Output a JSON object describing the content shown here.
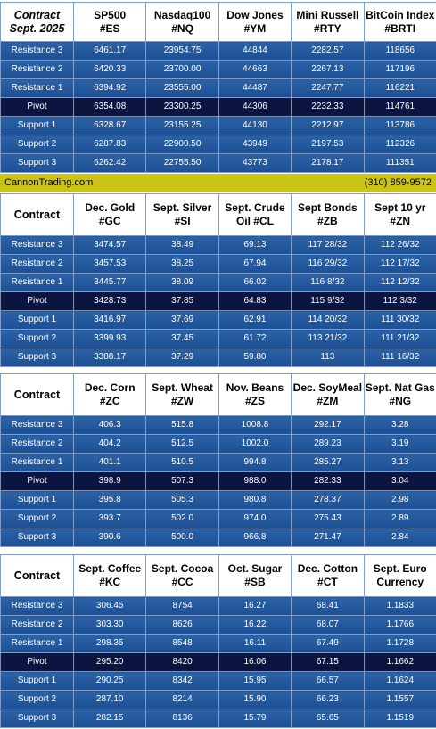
{
  "colors": {
    "row_bg": "#2563a8",
    "pivot_bg": "#0c1440",
    "banner_bg": "#ccc414"
  },
  "banner": {
    "site": "CannonTrading.com",
    "phone": "(310) 859-9572"
  },
  "row_labels": [
    "Resistance 3",
    "Resistance 2",
    "Resistance 1",
    "Pivot",
    "Support 1",
    "Support 2",
    "Support 3"
  ],
  "tables": [
    {
      "corner": [
        "Contract",
        "Sept. 2025"
      ],
      "headers": [
        [
          "SP500",
          "#ES"
        ],
        [
          "Nasdaq100",
          "#NQ"
        ],
        [
          "Dow Jones",
          "#YM"
        ],
        [
          "Mini Russell",
          "#RTY"
        ],
        [
          "BitCoin Index",
          "#BRTI"
        ]
      ],
      "rows": [
        [
          "6461.17",
          "23954.75",
          "44844",
          "2282.57",
          "118656"
        ],
        [
          "6420.33",
          "23700.00",
          "44663",
          "2267.13",
          "117196"
        ],
        [
          "6394.92",
          "23555.00",
          "44487",
          "2247.77",
          "116221"
        ],
        [
          "6354.08",
          "23300.25",
          "44306",
          "2232.33",
          "114761"
        ],
        [
          "6328.67",
          "23155.25",
          "44130",
          "2212.97",
          "113786"
        ],
        [
          "6287.83",
          "22900.50",
          "43949",
          "2197.53",
          "112326"
        ],
        [
          "6262.42",
          "22755.50",
          "43773",
          "2178.17",
          "111351"
        ]
      ]
    },
    {
      "corner": [
        "Contract"
      ],
      "headers": [
        [
          "Dec. Gold",
          "#GC"
        ],
        [
          "Sept. Silver",
          "#SI"
        ],
        [
          "Sept. Crude",
          "Oil #CL"
        ],
        [
          "Sept Bonds",
          "#ZB"
        ],
        [
          "Sept 10 yr",
          "#ZN"
        ]
      ],
      "rows": [
        [
          "3474.57",
          "38.49",
          "69.13",
          "117 28/32",
          "112 26/32"
        ],
        [
          "3457.53",
          "38.25",
          "67.94",
          "116 29/32",
          "112 17/32"
        ],
        [
          "3445.77",
          "38.09",
          "66.02",
          "116  8/32",
          "112 12/32"
        ],
        [
          "3428.73",
          "37.85",
          "64.83",
          "115  9/32",
          "112  3/32"
        ],
        [
          "3416.97",
          "37.69",
          "62.91",
          "114 20/32",
          "111 30/32"
        ],
        [
          "3399.93",
          "37.45",
          "61.72",
          "113 21/32",
          "111 21/32"
        ],
        [
          "3388.17",
          "37.29",
          "59.80",
          "113",
          "111 16/32"
        ]
      ]
    },
    {
      "corner": [
        "Contract"
      ],
      "headers": [
        [
          "Dec. Corn",
          "#ZC"
        ],
        [
          "Sept.  Wheat",
          "#ZW"
        ],
        [
          "Nov. Beans",
          "#ZS"
        ],
        [
          "Dec. SoyMeal",
          "#ZM"
        ],
        [
          "Sept. Nat Gas",
          "#NG"
        ]
      ],
      "rows": [
        [
          "406.3",
          "515.8",
          "1008.8",
          "292.17",
          "3.28"
        ],
        [
          "404.2",
          "512.5",
          "1002.0",
          "289.23",
          "3.19"
        ],
        [
          "401.1",
          "510.5",
          "994.8",
          "285.27",
          "3.13"
        ],
        [
          "398.9",
          "507.3",
          "988.0",
          "282.33",
          "3.04"
        ],
        [
          "395.8",
          "505.3",
          "980.8",
          "278.37",
          "2.98"
        ],
        [
          "393.7",
          "502.0",
          "974.0",
          "275.43",
          "2.89"
        ],
        [
          "390.6",
          "500.0",
          "966.8",
          "271.47",
          "2.84"
        ]
      ]
    },
    {
      "corner": [
        "Contract"
      ],
      "headers": [
        [
          "Sept. Coffee",
          "#KC"
        ],
        [
          "Sept. Cocoa",
          "#CC"
        ],
        [
          "Oct. Sugar",
          "#SB"
        ],
        [
          "Dec. Cotton",
          "#CT"
        ],
        [
          "Sept. Euro",
          "Currency"
        ]
      ],
      "rows": [
        [
          "306.45",
          "8754",
          "16.27",
          "68.41",
          "1.1833"
        ],
        [
          "303.30",
          "8626",
          "16.22",
          "68.07",
          "1.1766"
        ],
        [
          "298.35",
          "8548",
          "16.11",
          "67.49",
          "1.1728"
        ],
        [
          "295.20",
          "8420",
          "16.06",
          "67.15",
          "1.1662"
        ],
        [
          "290.25",
          "8342",
          "15.95",
          "66.57",
          "1.1624"
        ],
        [
          "287.10",
          "8214",
          "15.90",
          "66.23",
          "1.1557"
        ],
        [
          "282.15",
          "8136",
          "15.79",
          "65.65",
          "1.1519"
        ]
      ]
    }
  ]
}
